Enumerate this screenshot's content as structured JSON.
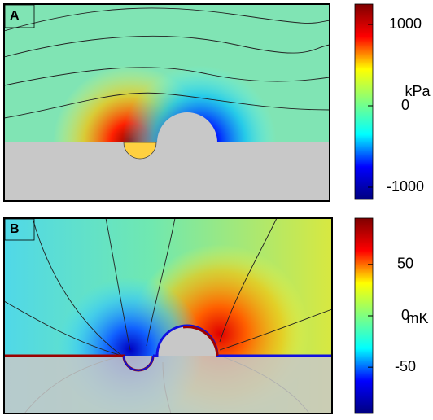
{
  "chart_data": [
    {
      "type": "field",
      "panel_label": "A",
      "colorbar_label": "kPa",
      "colormap": "jet",
      "clim": [
        -1150,
        1250
      ],
      "cticks": [
        1000,
        0,
        -1000
      ]
    },
    {
      "type": "field",
      "panel_label": "B",
      "colorbar_label": "mK",
      "colormap": "jet",
      "clim": [
        -95,
        95
      ],
      "cticks": [
        50,
        0,
        -50
      ]
    }
  ]
}
